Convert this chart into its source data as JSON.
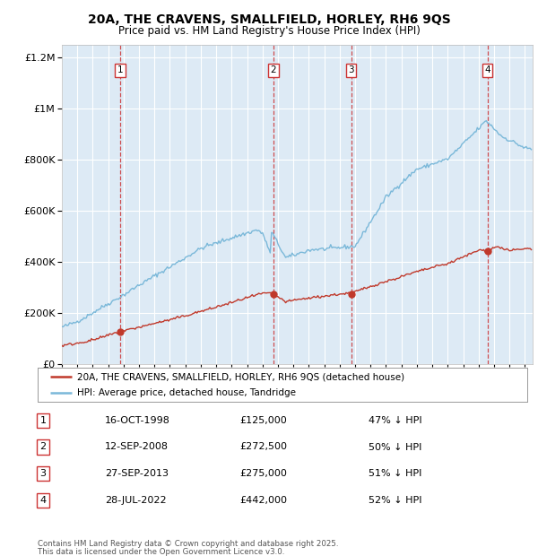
{
  "title1": "20A, THE CRAVENS, SMALLFIELD, HORLEY, RH6 9QS",
  "title2": "Price paid vs. HM Land Registry's House Price Index (HPI)",
  "legend_red": "20A, THE CRAVENS, SMALLFIELD, HORLEY, RH6 9QS (detached house)",
  "legend_blue": "HPI: Average price, detached house, Tandridge",
  "footer1": "Contains HM Land Registry data © Crown copyright and database right 2025.",
  "footer2": "This data is licensed under the Open Government Licence v3.0.",
  "transactions": [
    {
      "num": 1,
      "date": "16-OCT-1998",
      "price": 125000,
      "pct": "47% ↓ HPI",
      "year": 1998.79
    },
    {
      "num": 2,
      "date": "12-SEP-2008",
      "price": 272500,
      "pct": "50% ↓ HPI",
      "year": 2008.7
    },
    {
      "num": 3,
      "date": "27-SEP-2013",
      "price": 275000,
      "pct": "51% ↓ HPI",
      "year": 2013.74
    },
    {
      "num": 4,
      "date": "28-JUL-2022",
      "price": 442000,
      "pct": "52% ↓ HPI",
      "year": 2022.57
    }
  ],
  "hpi_color": "#7ab8d9",
  "price_color": "#c0392b",
  "vline_color": "#cc3333",
  "bg_color": "#ddeaf5",
  "grid_color": "#ffffff",
  "ylim": [
    0,
    1200000
  ],
  "xlim_start": 1995,
  "xlim_end": 2025.5
}
